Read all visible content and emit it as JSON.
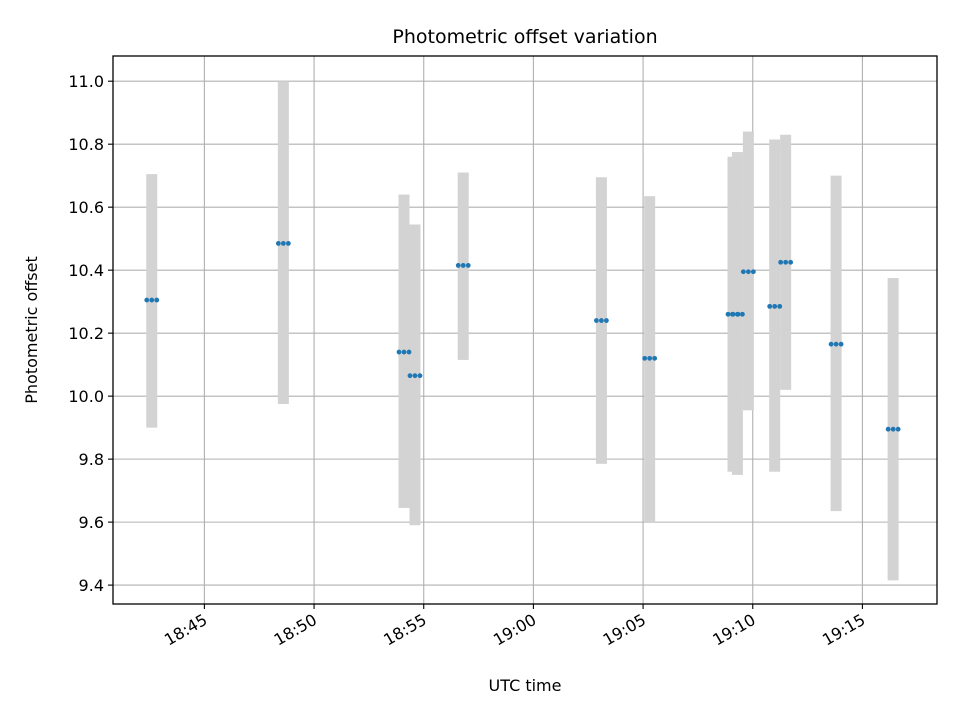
{
  "chart_data": {
    "type": "scatter",
    "title": "Photometric offset variation",
    "xlabel": "UTC time",
    "ylabel": "Photometric offset",
    "x_tick_labels": [
      "18:45",
      "18:50",
      "18:55",
      "19:00",
      "19:05",
      "19:10",
      "19:15"
    ],
    "y_tick_labels": [
      "9.4",
      "9.6",
      "9.8",
      "10.0",
      "10.2",
      "10.4",
      "10.6",
      "10.8",
      "11.0"
    ],
    "x_ticks": [
      "18:45",
      "18:50",
      "18:55",
      "19:00",
      "19:05",
      "19:10",
      "19:15"
    ],
    "y_ticks": [
      9.4,
      9.6,
      9.8,
      10.0,
      10.2,
      10.4,
      10.6,
      10.8,
      11.0
    ],
    "xlim": [
      "18:40:50",
      "19:18:24"
    ],
    "ylim": [
      9.34,
      11.08
    ],
    "grid": true,
    "point_color": "#1f77b4",
    "errorbar_color": "#d3d3d3",
    "points": [
      {
        "time": "18:42:36",
        "offset": 10.305,
        "low": 9.9,
        "high": 10.705
      },
      {
        "time": "18:48:36",
        "offset": 10.485,
        "low": 9.975,
        "high": 11.0
      },
      {
        "time": "18:54:06",
        "offset": 10.14,
        "low": 9.645,
        "high": 10.64
      },
      {
        "time": "18:54:36",
        "offset": 10.065,
        "low": 9.59,
        "high": 10.545
      },
      {
        "time": "18:56:48",
        "offset": 10.415,
        "low": 10.115,
        "high": 10.71
      },
      {
        "time": "19:03:06",
        "offset": 10.24,
        "low": 9.785,
        "high": 10.695
      },
      {
        "time": "19:05:18",
        "offset": 10.12,
        "low": 9.6,
        "high": 10.635
      },
      {
        "time": "19:09:06",
        "offset": 10.26,
        "low": 9.76,
        "high": 10.76
      },
      {
        "time": "19:09:18",
        "offset": 10.26,
        "low": 9.75,
        "high": 10.775
      },
      {
        "time": "19:09:48",
        "offset": 10.395,
        "low": 9.955,
        "high": 10.84
      },
      {
        "time": "19:11:00",
        "offset": 10.285,
        "low": 9.76,
        "high": 10.815
      },
      {
        "time": "19:11:30",
        "offset": 10.425,
        "low": 10.02,
        "high": 10.83
      },
      {
        "time": "19:13:48",
        "offset": 10.165,
        "low": 9.635,
        "high": 10.7
      },
      {
        "time": "19:16:24",
        "offset": 9.895,
        "low": 9.415,
        "high": 10.375
      }
    ]
  }
}
